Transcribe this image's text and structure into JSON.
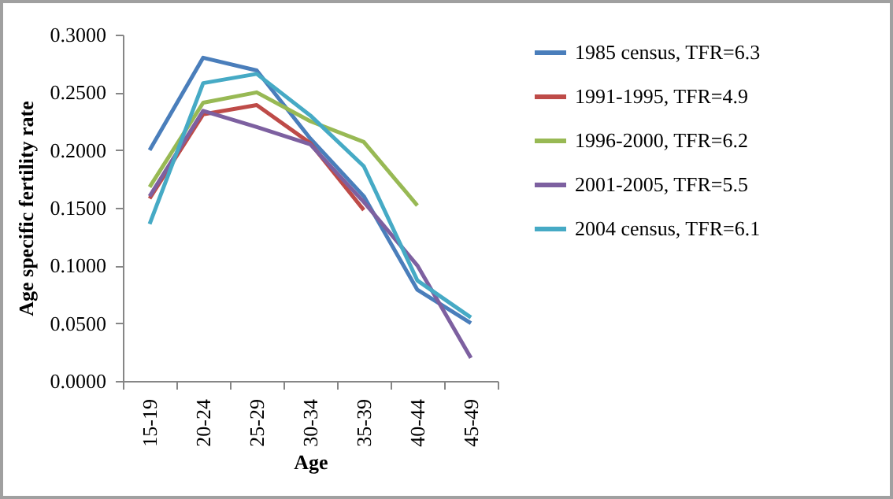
{
  "chart_data": {
    "type": "line",
    "xlabel": "Age",
    "ylabel": "Age specific fertility rate",
    "categories": [
      "15-19",
      "20-24",
      "25-29",
      "30-34",
      "35-39",
      "40-44",
      "45-49"
    ],
    "ylim": [
      0,
      0.3
    ],
    "yticks": [
      {
        "value": 0,
        "label": "0.0000"
      },
      {
        "value": 0.05,
        "label": "0.0500"
      },
      {
        "value": 0.1,
        "label": "0.1000"
      },
      {
        "value": 0.15,
        "label": "0.1500"
      },
      {
        "value": 0.2,
        "label": "0.2000"
      },
      {
        "value": 0.25,
        "label": "0.2500"
      },
      {
        "value": 0.3,
        "label": "0.3000"
      }
    ],
    "grid": false,
    "legend": "right",
    "marker": "none",
    "line_style": "solid",
    "series": [
      {
        "name": "1985 census, TFR=6.3",
        "color": "#4a7ebb",
        "values": [
          0.2,
          0.28,
          0.269,
          0.21,
          0.16,
          0.079,
          0.05
        ]
      },
      {
        "name": "1991-1995, TFR=4.9",
        "color": "#be4b48",
        "values": [
          0.158,
          0.231,
          0.239,
          0.206,
          0.148,
          null,
          null
        ]
      },
      {
        "name": "1996-2000, TFR=6.2",
        "color": "#98b954",
        "values": [
          0.168,
          0.241,
          0.25,
          0.225,
          0.207,
          0.152,
          null
        ]
      },
      {
        "name": "2001-2005, TFR=5.5",
        "color": "#7d60a0",
        "values": [
          0.16,
          0.234,
          0.22,
          0.205,
          0.155,
          0.1,
          0.02
        ]
      },
      {
        "name": "2004 census, TFR=6.1",
        "color": "#46aac5",
        "values": [
          0.136,
          0.258,
          0.266,
          0.23,
          0.186,
          0.087,
          0.055
        ]
      }
    ]
  }
}
